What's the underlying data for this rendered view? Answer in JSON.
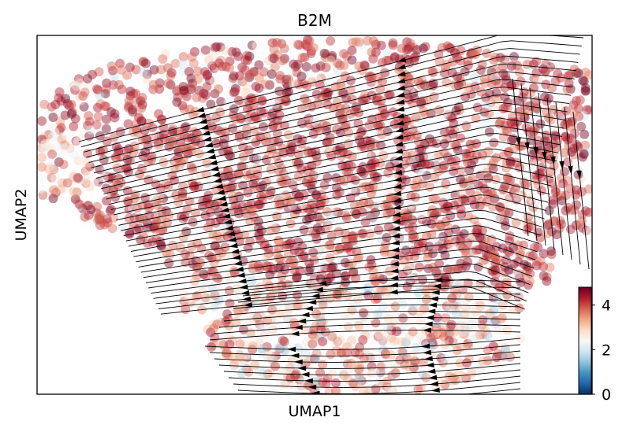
{
  "chart_data": {
    "type": "scatter",
    "subtype": "umap-embedding-with-velocity-streamlines",
    "title": "B2M",
    "xlabel": "UMAP1",
    "ylabel": "UMAP2",
    "x_ticks": [],
    "y_ticks": [],
    "colorbar": {
      "colormap": "RdBu_r",
      "range": [
        0,
        4.8
      ],
      "ticks": [
        0,
        2,
        4
      ],
      "tick_labels": [
        "0",
        "2",
        "4"
      ],
      "colors": [
        "#053061",
        "#2166ac",
        "#4393c3",
        "#92c5de",
        "#d1e5f0",
        "#f7f7f7",
        "#fddbc7",
        "#f4a582",
        "#d6604d",
        "#b2182b",
        "#67001f"
      ]
    },
    "point_alpha": 0.45,
    "streamline_color": "#000000",
    "description_of_distribution": {
      "upper_lobe": "wide lobe spanning left to right, mostly high expression (values ~3.5-4.8)",
      "lower_lobe": "narrower lobe bottom-center, mixed expression (values ~2-4.5)",
      "flow_direction": "upper lobe flows right-to-left along arcs, right edge flows downward; lower lobe flows right-to-left"
    }
  }
}
